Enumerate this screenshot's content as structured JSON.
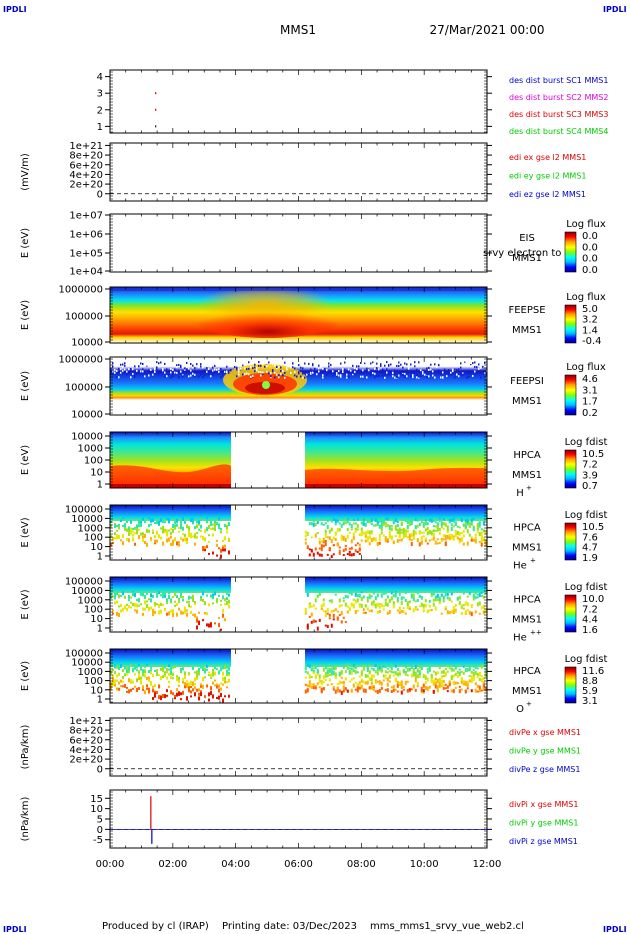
{
  "header": {
    "corner_tl": "IPDLI",
    "corner_tr": "IPDLI",
    "corner_bl": "IPDLI",
    "corner_br": "IPDLI",
    "spacecraft": "MMS1",
    "date": "27/Mar/2021 00:00"
  },
  "footer": {
    "produced": "Produced by cl (IRAP)",
    "printing": "Printing date: 03/Dec/2023",
    "file": "mms_mms1_srvy_vue_web2.cl"
  },
  "colors": {
    "blue": "#0000cc",
    "magenta": "#dd00dd",
    "red": "#dd0000",
    "green": "#00cc00",
    "colorbar": [
      "#00008b",
      "#0000ff",
      "#00bfff",
      "#00ffff",
      "#7fff00",
      "#ffff00",
      "#ffa500",
      "#ff0000",
      "#8b0000"
    ]
  },
  "chart_data": {
    "type": "heatmap",
    "x_axis": {
      "ticks": [
        "00:00",
        "02:00",
        "04:00",
        "06:00",
        "08:00",
        "10:00",
        "12:00"
      ],
      "range_hours": [
        0,
        12
      ]
    },
    "panels": [
      {
        "id": "burst",
        "type": "scatter",
        "ylabel": "",
        "yticks": [
          "4",
          "3",
          "2",
          "1"
        ],
        "ylim": [
          0.6,
          4.4
        ],
        "legend": [
          {
            "text": "des dist burst SC1 MMS1",
            "color": "#0000cc"
          },
          {
            "text": "des dist burst SC2 MMS2",
            "color": "#dd00dd"
          },
          {
            "text": "des dist burst SC3 MMS3",
            "color": "#dd0000"
          },
          {
            "text": "des dist burst SC4 MMS4",
            "color": "#00cc00"
          }
        ],
        "points": [
          {
            "t": 1.45,
            "y": 3,
            "color": "#dd0000"
          },
          {
            "t": 1.45,
            "y": 2,
            "color": "#dd0000"
          },
          {
            "t": 1.45,
            "y": 1,
            "color": "#0000cc"
          }
        ]
      },
      {
        "id": "edi",
        "type": "line",
        "ylabel": "(mV/m)",
        "yticks": [
          "1e+21",
          "8e+20",
          "6e+20",
          "4e+20",
          "2e+20",
          "0"
        ],
        "ylim": [
          -1.5e+20,
          1.05e+21
        ],
        "zero_dashed": true,
        "legend": [
          {
            "text": "edi ex gse l2 MMS1",
            "color": "#dd0000"
          },
          {
            "text": "edi ey gse l2 MMS1",
            "color": "#00cc00"
          },
          {
            "text": "edi ez gse l2 MMS1",
            "color": "#0000cc"
          }
        ]
      },
      {
        "id": "eis",
        "type": "heatmap",
        "ylabel": "E (eV)",
        "yticks": [
          "1e+07",
          "1e+06",
          "1e+05",
          "1e+04"
        ],
        "log_y": true,
        "ylim": [
          10000.0,
          10000000.0
        ],
        "instrument": [
          "EIS",
          "MMS1"
        ],
        "overlay_label": "srvy electron to",
        "colorbar": {
          "title": "Log flux",
          "values": [
            "0.0",
            "0.0",
            "0.0",
            "0.0"
          ]
        },
        "data": "empty"
      },
      {
        "id": "feeps_e",
        "type": "heatmap",
        "ylabel": "E (eV)",
        "yticks": [
          "1000000",
          "100000",
          "10000"
        ],
        "log_y": true,
        "ylim": [
          10000.0,
          1000000.0
        ],
        "instrument": [
          "FEEPSE",
          "MMS1"
        ],
        "colorbar": {
          "title": "Log flux",
          "values": [
            "5.0",
            "3.2",
            "1.4",
            "-0.4"
          ]
        },
        "coverage_hours": [
          [
            0,
            12
          ]
        ]
      },
      {
        "id": "feeps_i",
        "type": "heatmap",
        "ylabel": "E (eV)",
        "yticks": [
          "1000000",
          "100000",
          "10000"
        ],
        "log_y": true,
        "ylim": [
          10000.0,
          1000000.0
        ],
        "instrument": [
          "FEEPSI",
          "MMS1"
        ],
        "colorbar": {
          "title": "Log flux",
          "values": [
            "4.6",
            "3.1",
            "1.7",
            "0.2"
          ]
        },
        "coverage_hours": [
          [
            0,
            12
          ]
        ]
      },
      {
        "id": "hpca_h",
        "type": "heatmap",
        "ylabel": "E (eV)",
        "yticks": [
          "10000",
          "1000",
          "100",
          "10",
          "1"
        ],
        "log_y": true,
        "ylim": [
          1,
          30000
        ],
        "instrument": [
          "HPCA",
          "MMS1"
        ],
        "species": "H",
        "charge": "+",
        "colorbar": {
          "title": "Log fdist",
          "values": [
            "10.5",
            "7.2",
            "3.9",
            "0.7"
          ]
        },
        "coverage_hours": [
          [
            0,
            3.85
          ],
          [
            6.2,
            12
          ]
        ]
      },
      {
        "id": "hpca_he1",
        "type": "heatmap",
        "ylabel": "E (eV)",
        "yticks": [
          "100000",
          "10000",
          "1000",
          "100",
          "10",
          "1"
        ],
        "log_y": true,
        "ylim": [
          1,
          100000
        ],
        "instrument": [
          "HPCA",
          "MMS1"
        ],
        "species": "He",
        "charge": "+",
        "colorbar": {
          "title": "Log fdist",
          "values": [
            "10.5",
            "7.6",
            "4.7",
            "1.9"
          ]
        },
        "coverage_hours": [
          [
            0,
            3.85
          ],
          [
            6.2,
            12
          ]
        ]
      },
      {
        "id": "hpca_he2",
        "type": "heatmap",
        "ylabel": "E (eV)",
        "yticks": [
          "100000",
          "10000",
          "1000",
          "100",
          "10",
          "1"
        ],
        "log_y": true,
        "ylim": [
          1,
          100000
        ],
        "instrument": [
          "HPCA",
          "MMS1"
        ],
        "species": "He",
        "charge": "++",
        "colorbar": {
          "title": "Log fdist",
          "values": [
            "10.0",
            "7.2",
            "4.4",
            "1.6"
          ]
        },
        "coverage_hours": [
          [
            0,
            3.85
          ],
          [
            6.2,
            12
          ]
        ]
      },
      {
        "id": "hpca_o",
        "type": "heatmap",
        "ylabel": "E (eV)",
        "yticks": [
          "100000",
          "10000",
          "1000",
          "100",
          "10",
          "1"
        ],
        "log_y": true,
        "ylim": [
          1,
          100000
        ],
        "instrument": [
          "HPCA",
          "MMS1"
        ],
        "species": "O",
        "charge": "+",
        "colorbar": {
          "title": "Log fdist",
          "values": [
            "11.6",
            "8.8",
            "5.9",
            "3.1"
          ]
        },
        "coverage_hours": [
          [
            0,
            3.85
          ],
          [
            6.2,
            12
          ]
        ]
      },
      {
        "id": "divpe",
        "type": "line",
        "ylabel": "(nPa/km)",
        "yticks": [
          "1e+21",
          "8e+20",
          "6e+20",
          "4e+20",
          "2e+20",
          "0"
        ],
        "ylim": [
          -1.5e+20,
          1.05e+21
        ],
        "zero_dashed": true,
        "legend": [
          {
            "text": "divPe x gse MMS1",
            "color": "#dd0000"
          },
          {
            "text": "divPe y gse MMS1",
            "color": "#00cc00"
          },
          {
            "text": "divPe z gse MMS1",
            "color": "#0000cc"
          }
        ]
      },
      {
        "id": "divpi",
        "type": "line",
        "ylabel": "(nPa/km)",
        "yticks": [
          "15",
          "10",
          "5",
          "0",
          "-5"
        ],
        "ylim": [
          -9,
          19
        ],
        "zero_dashed": true,
        "legend": [
          {
            "text": "divPi x gse MMS1",
            "color": "#dd0000"
          },
          {
            "text": "divPi y gse MMS1",
            "color": "#00cc00"
          },
          {
            "text": "divPi z gse MMS1",
            "color": "#0000cc"
          }
        ],
        "spike": {
          "t": 1.3,
          "x_peak": 16,
          "z_min": -7
        }
      }
    ]
  }
}
